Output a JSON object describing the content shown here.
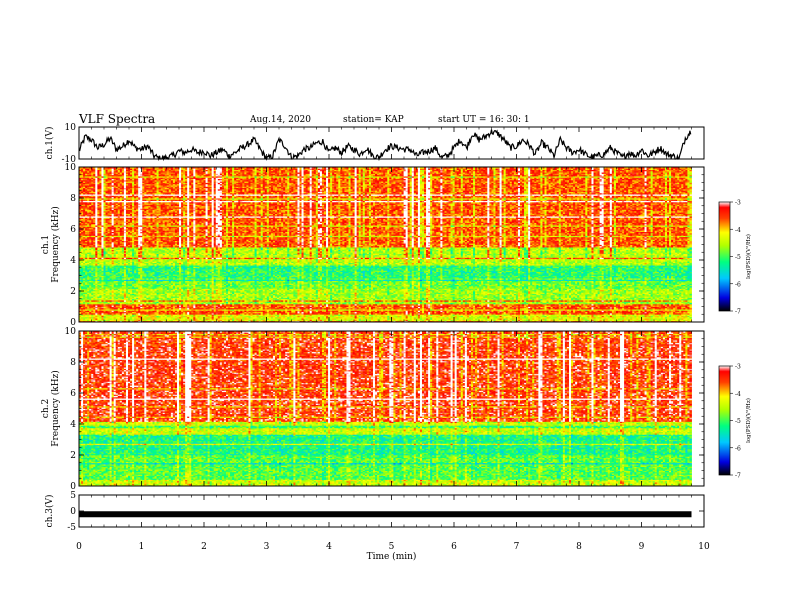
{
  "header": {
    "title": "VLF Spectra",
    "date": "Aug.14, 2020",
    "station": "station= KAP",
    "start": "start  UT  =   16: 30: 1"
  },
  "chart_data": [
    {
      "type": "line",
      "name": "ch1-voltage",
      "ylabel": "ch.1(V)",
      "ylim": [
        -10,
        10
      ],
      "yticks": [
        "10",
        "-10"
      ],
      "xlim": [
        0,
        10
      ],
      "series": [
        {
          "x": [
            0,
            0.1,
            0.2,
            0.3,
            0.4,
            0.5,
            0.6,
            0.7,
            0.8,
            0.9,
            1.0,
            1.1,
            1.2,
            1.3,
            1.4,
            1.5,
            1.6,
            1.7,
            1.8,
            1.9,
            2.0,
            2.1,
            2.2,
            2.3,
            2.4,
            2.5,
            2.6,
            2.7,
            2.8,
            2.9,
            3.0,
            3.1,
            3.2,
            3.3,
            3.4,
            3.5,
            3.6,
            3.7,
            3.8,
            3.9,
            4.0,
            4.1,
            4.2,
            4.3,
            4.4,
            4.5,
            4.6,
            4.7,
            4.8,
            4.9,
            5.0,
            5.1,
            5.2,
            5.3,
            5.4,
            5.5,
            5.6,
            5.7,
            5.8,
            5.9,
            6.0,
            6.1,
            6.2,
            6.3,
            6.4,
            6.5,
            6.6,
            6.7,
            6.8,
            6.9,
            7.0,
            7.1,
            7.2,
            7.3,
            7.4,
            7.5,
            7.6,
            7.7,
            7.8,
            7.9,
            8.0,
            8.1,
            8.2,
            8.3,
            8.4,
            8.5,
            8.6,
            8.7,
            8.8,
            8.9,
            9.0,
            9.1,
            9.2,
            9.3,
            9.4,
            9.5,
            9.6,
            9.7,
            9.8
          ],
          "y": [
            -5,
            4,
            2,
            -3,
            -1,
            3,
            -4,
            -2,
            2,
            -3,
            -4,
            -2,
            -8,
            -10,
            -9,
            -8,
            -5,
            -6,
            -4,
            -6,
            -5,
            -8,
            -6,
            -4,
            -8,
            -6,
            -3,
            -1,
            2,
            -4,
            -10,
            -8,
            2,
            -2,
            -9,
            -8,
            -4,
            -3,
            0,
            1,
            -6,
            -3,
            -6,
            -2,
            -4,
            -7,
            -3,
            -8,
            -9,
            -4,
            -2,
            -3,
            -4,
            -4,
            -8,
            -6,
            -5,
            -3,
            -9,
            -8,
            -3,
            2,
            -3,
            6,
            2,
            4,
            7,
            6,
            2,
            -3,
            -2,
            2,
            -1,
            -7,
            0,
            -3,
            -8,
            2,
            -3,
            -6,
            -4,
            -7,
            -9,
            -8,
            -7,
            -3,
            -6,
            -9,
            -6,
            -8,
            -4,
            -8,
            -6,
            -3,
            -7,
            -8,
            -10,
            3,
            8
          ]
        }
      ]
    },
    {
      "type": "heatmap",
      "name": "ch1-spectrogram",
      "ylabel": "ch.1\nFrequency (kHz)",
      "ylim": [
        0,
        10
      ],
      "yticks": [
        "0",
        "2",
        "4",
        "6",
        "8",
        "10"
      ],
      "xlim": [
        0,
        10
      ],
      "data_xmax": 9.8,
      "time_bins": 300,
      "freq_bins": 120,
      "profile_note": "dominant color by frequency band (log PSD)",
      "bands_khz": [
        {
          "f": [
            0,
            0.5
          ],
          "log_psd": -4.3
        },
        {
          "f": [
            0.5,
            1.2
          ],
          "log_psd": -3.6
        },
        {
          "f": [
            1.2,
            2.2
          ],
          "log_psd": -4.6
        },
        {
          "f": [
            2.2,
            2.8
          ],
          "log_psd": -4.8
        },
        {
          "f": [
            2.8,
            3.7
          ],
          "log_psd": -5.1
        },
        {
          "f": [
            3.7,
            4.8
          ],
          "log_psd": -4.5
        },
        {
          "f": [
            4.8,
            10
          ],
          "log_psd": -3.6
        }
      ],
      "colorbar": {
        "label": "log(PSD)(V²/Hz)",
        "range": [
          -7,
          -3
        ],
        "ticks": [
          "-3",
          "-4",
          "-5",
          "-6",
          "-7"
        ]
      }
    },
    {
      "type": "heatmap",
      "name": "ch2-spectrogram",
      "ylabel": "ch.2\nFrequency (kHz)",
      "ylim": [
        0,
        10
      ],
      "yticks": [
        "0",
        "2",
        "4",
        "6",
        "8",
        "10"
      ],
      "xlim": [
        0,
        10
      ],
      "data_xmax": 9.8,
      "time_bins": 300,
      "freq_bins": 120,
      "bands_khz": [
        {
          "f": [
            0,
            0.4
          ],
          "log_psd": -4.4
        },
        {
          "f": [
            0.4,
            2.0
          ],
          "log_psd": -4.9
        },
        {
          "f": [
            2.0,
            3.3
          ],
          "log_psd": -5.2
        },
        {
          "f": [
            3.3,
            4.2
          ],
          "log_psd": -4.4
        },
        {
          "f": [
            4.2,
            10
          ],
          "log_psd": -3.4
        }
      ],
      "colorbar": {
        "label": "log(PSD)(V²/Hz)",
        "range": [
          -7,
          -3
        ],
        "ticks": [
          "-3",
          "-4",
          "-5",
          "-6",
          "-7"
        ]
      }
    },
    {
      "type": "line",
      "name": "ch3-voltage",
      "ylabel": "ch.3(V)",
      "ylim": [
        -5,
        5
      ],
      "yticks": [
        "5",
        "0",
        "-5"
      ],
      "xlim": [
        0,
        10
      ],
      "series": [
        {
          "x": [
            0,
            9.8
          ],
          "y": [
            -1,
            -1
          ]
        }
      ],
      "xlabel": "Time (min)",
      "xticks": [
        "0",
        "1",
        "2",
        "3",
        "4",
        "5",
        "6",
        "7",
        "8",
        "9",
        "10"
      ]
    }
  ]
}
